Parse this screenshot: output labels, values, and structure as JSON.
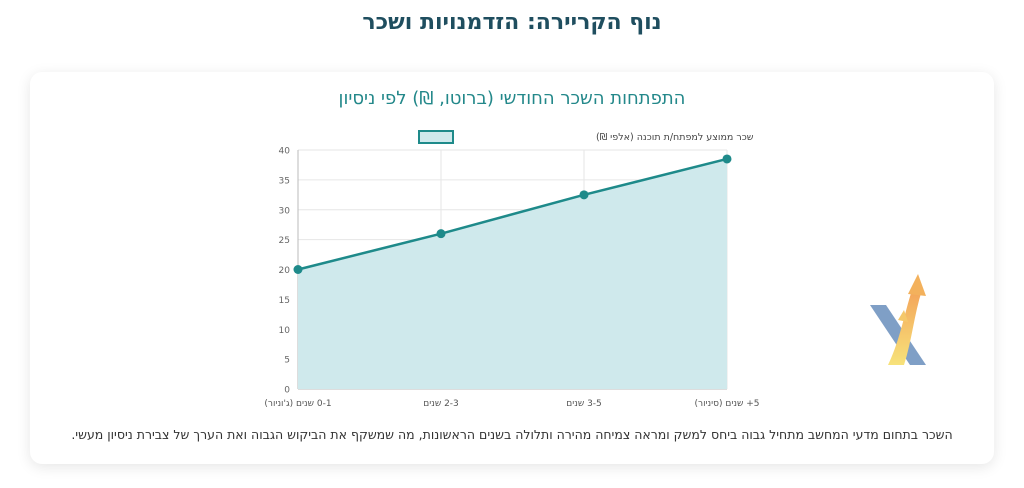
{
  "page": {
    "title": "נוף הקריירה: הזדמנויות ושכר"
  },
  "colors": {
    "line": "#1e8a8a",
    "fill": "#cfe9ec",
    "grid": "#e6e6e6",
    "title": "#23888a"
  },
  "chart_data": {
    "type": "line",
    "title": "התפתחות השכר החודשי (ברוטו, ₪) לפי ניסיון",
    "categories": [
      "0-1 שנים (ג'וניור)",
      "2-3 שנים",
      "3-5 שנים",
      "5+ שנים (סיניור)"
    ],
    "series": [
      {
        "name": "שכר ממוצע למפתח/ת תוכנה (אלפי ₪)",
        "values": [
          20,
          26,
          32.5,
          38.5
        ]
      }
    ],
    "ylim": [
      0,
      40
    ],
    "yticks": [
      0,
      5,
      10,
      15,
      20,
      25,
      30,
      35,
      40
    ],
    "legend": "top",
    "grid": true,
    "filled": true
  },
  "caption": "השכר בתחום מדעי המחשב מתחיל גבוה ביחס למשק ומראה צמיחה מהירה ותלולה בשנים הראשונות, מה שמשקף את הביקוש הגבוה ואת הערך של צבירת ניסיון מעשי.",
  "logo": {
    "icon": "x-arrow-logo-icon"
  }
}
